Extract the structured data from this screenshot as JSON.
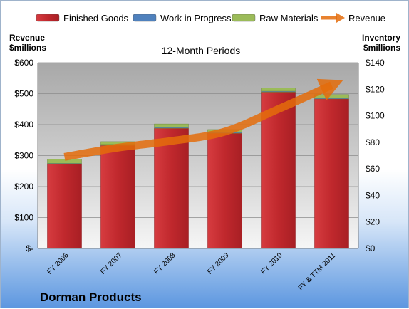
{
  "chart_data": {
    "type": "bar",
    "title": "12-Month Periods",
    "company": "Dorman Products",
    "categories": [
      "FY 2006",
      "FY 2007",
      "FY 2008",
      "FY 2009",
      "FY 2010",
      "FY & TTM 2011"
    ],
    "series": [
      {
        "name": "Finished Goods",
        "axis": "left",
        "kind": "bar",
        "color": "#c0282d",
        "values": [
          272,
          333,
          388,
          372,
          505,
          483
        ]
      },
      {
        "name": "Work in Progress",
        "axis": "left",
        "kind": "bar",
        "color": "#4f81bd",
        "values": [
          3,
          3,
          3,
          3,
          3,
          3
        ]
      },
      {
        "name": "Raw Materials",
        "axis": "left",
        "kind": "bar",
        "color": "#9bbb59",
        "values": [
          13,
          9,
          11,
          9,
          10,
          11
        ]
      },
      {
        "name": "Revenue",
        "axis": "right",
        "kind": "line",
        "color": "#e46c0a",
        "values": [
          69,
          76,
          81,
          88,
          105,
          123
        ]
      }
    ],
    "left_axis": {
      "label_line1": "Revenue",
      "label_line2": "$millions",
      "ylim": [
        0,
        600
      ],
      "ticks": [
        0,
        100,
        200,
        300,
        400,
        500,
        600
      ],
      "tick_labels": [
        "$-",
        "$100",
        "$200",
        "$300",
        "$400",
        "$500",
        "$600"
      ]
    },
    "right_axis": {
      "label_line1": "Inventory",
      "label_line2": "$millions",
      "ylim": [
        0,
        140
      ],
      "ticks": [
        0,
        20,
        40,
        60,
        80,
        100,
        120,
        140
      ],
      "tick_labels": [
        "$0",
        "$20",
        "$40",
        "$60",
        "$80",
        "$100",
        "$120",
        "$140"
      ]
    },
    "grid": true,
    "legend_position": "top"
  }
}
